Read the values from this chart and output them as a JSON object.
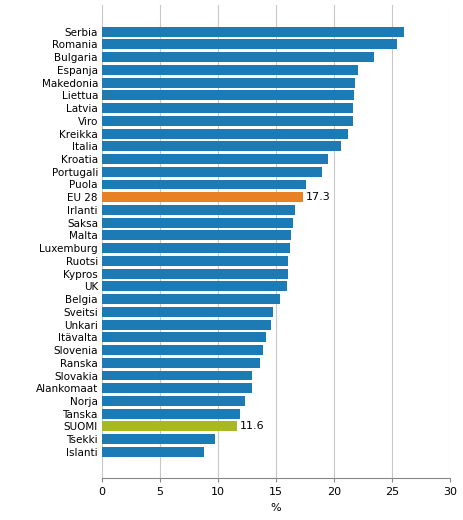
{
  "categories": [
    "Serbia",
    "Romania",
    "Bulgaria",
    "Espanja",
    "Makedonia",
    "Liettua",
    "Latvia",
    "Viro",
    "Kreikka",
    "Italia",
    "Kroatia",
    "Portugali",
    "Puola",
    "EU 28",
    "Irlanti",
    "Saksa",
    "Malta",
    "Luxemburg",
    "Ruotsi",
    "Kypros",
    "UK",
    "Belgia",
    "Sveitsi",
    "Unkari",
    "Itävalta",
    "Slovenia",
    "Ranska",
    "Slovakia",
    "Alankomaat",
    "Norja",
    "Tanska",
    "SUOMI",
    "Tsekki",
    "Islanti"
  ],
  "values": [
    26.0,
    25.4,
    23.4,
    22.1,
    21.8,
    21.7,
    21.6,
    21.6,
    21.2,
    20.6,
    19.5,
    19.0,
    17.6,
    17.3,
    16.6,
    16.5,
    16.3,
    16.2,
    16.0,
    16.0,
    15.9,
    15.3,
    14.7,
    14.6,
    14.1,
    13.9,
    13.6,
    12.9,
    12.9,
    12.3,
    11.9,
    11.6,
    9.7,
    8.8
  ],
  "bar_colors": [
    "#1c7bb5",
    "#1c7bb5",
    "#1c7bb5",
    "#1c7bb5",
    "#1c7bb5",
    "#1c7bb5",
    "#1c7bb5",
    "#1c7bb5",
    "#1c7bb5",
    "#1c7bb5",
    "#1c7bb5",
    "#1c7bb5",
    "#1c7bb5",
    "#e88024",
    "#1c7bb5",
    "#1c7bb5",
    "#1c7bb5",
    "#1c7bb5",
    "#1c7bb5",
    "#1c7bb5",
    "#1c7bb5",
    "#1c7bb5",
    "#1c7bb5",
    "#1c7bb5",
    "#1c7bb5",
    "#1c7bb5",
    "#1c7bb5",
    "#1c7bb5",
    "#1c7bb5",
    "#1c7bb5",
    "#1c7bb5",
    "#a8b820",
    "#1c7bb5",
    "#1c7bb5"
  ],
  "annotated_indices": [
    13,
    31
  ],
  "annotated_labels": [
    "17.3",
    "11.6"
  ],
  "xlabel": "%",
  "xlim": [
    0,
    30
  ],
  "xticks": [
    0,
    5,
    10,
    15,
    20,
    25,
    30
  ],
  "background_color": "#ffffff",
  "grid_color": "#c8c8c8",
  "bar_height": 0.78,
  "label_fontsize": 7.5,
  "tick_fontsize": 8,
  "annotation_fontsize": 8
}
